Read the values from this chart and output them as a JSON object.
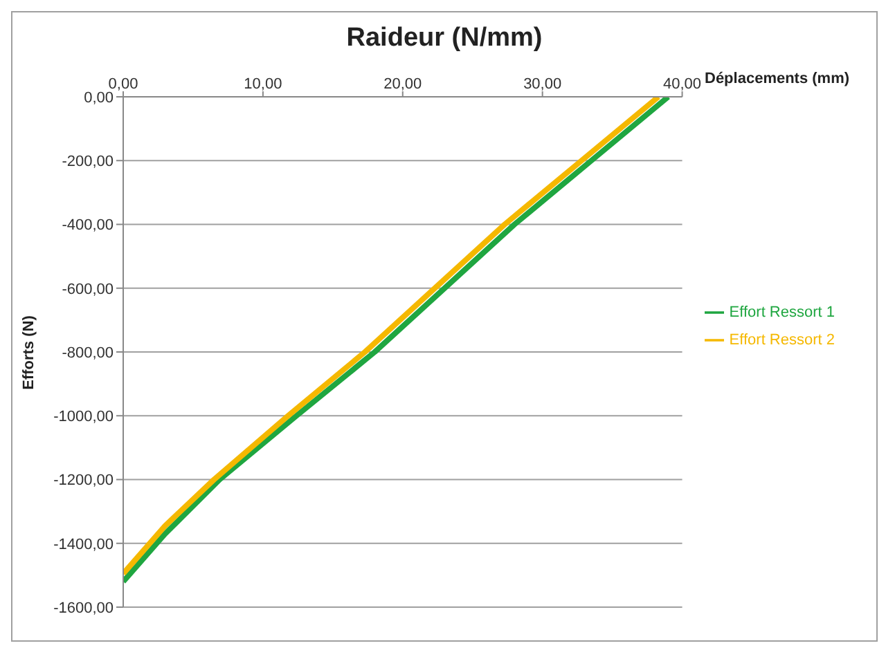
{
  "chart_data": {
    "type": "line",
    "title": "Raideur (N/mm)",
    "xlabel": "Déplacements (mm)",
    "ylabel": "Efforts (N)",
    "xlim": [
      0,
      40
    ],
    "xticks": [
      {
        "value": 0,
        "label": "0,00"
      },
      {
        "value": 10,
        "label": "10,00"
      },
      {
        "value": 20,
        "label": "20,00"
      },
      {
        "value": 30,
        "label": "30,00"
      },
      {
        "value": 40,
        "label": "40,00"
      }
    ],
    "ylim": [
      -1600,
      0
    ],
    "yticks": [
      {
        "value": -1600,
        "label": "-1600,00"
      },
      {
        "value": -1400,
        "label": "-1400,00"
      },
      {
        "value": -1200,
        "label": "-1200,00"
      },
      {
        "value": -1000,
        "label": "-1000,00"
      },
      {
        "value": -800,
        "label": "-800,00"
      },
      {
        "value": -600,
        "label": "-600,00"
      },
      {
        "value": -400,
        "label": "-400,00"
      },
      {
        "value": -200,
        "label": "-200,00"
      },
      {
        "value": 0,
        "label": "0,00"
      }
    ],
    "grid": "y",
    "legend": "right",
    "marker": "none",
    "line_style": "solid",
    "series": [
      {
        "name": "Effort Ressort 1",
        "color": "#1fa640",
        "x": [
          0,
          3,
          6.9,
          12.4,
          18,
          23,
          28,
          33.5,
          39
        ],
        "values": [
          -1520,
          -1370,
          -1200,
          -1000,
          -800,
          -600,
          -400,
          -200,
          0
        ]
      },
      {
        "name": "Effort Ressort 2",
        "color": "#f5b800",
        "x": [
          0,
          3,
          6.5,
          11.8,
          17.3,
          22.3,
          27.3,
          32.8,
          38.3
        ],
        "values": [
          -1495,
          -1345,
          -1200,
          -1000,
          -800,
          -600,
          -400,
          -200,
          0
        ]
      }
    ]
  }
}
